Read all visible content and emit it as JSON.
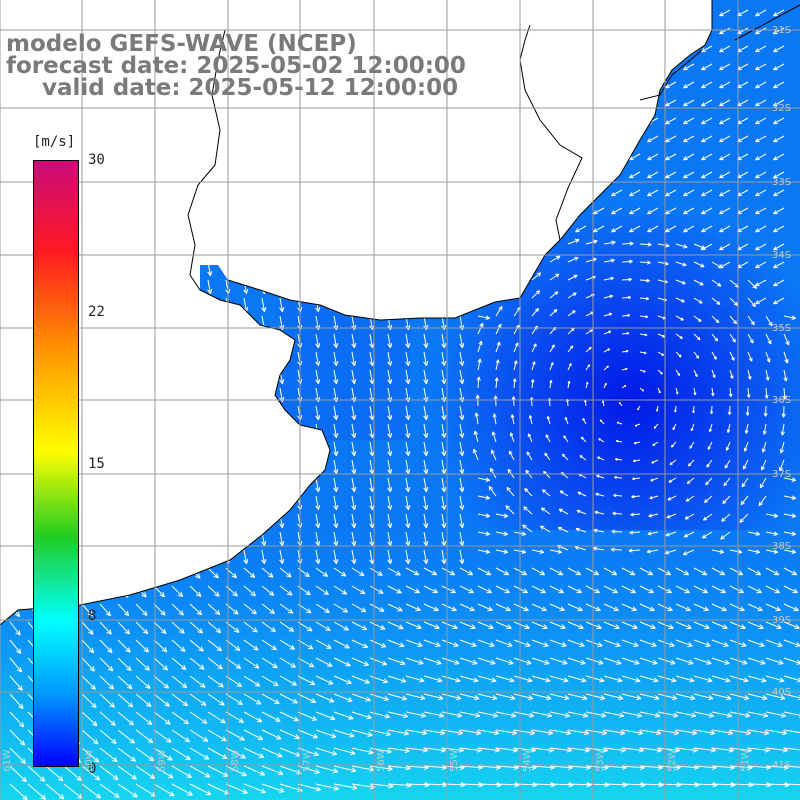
{
  "title": {
    "model": "modelo GEFS-WAVE (NCEP)",
    "forecast": "forecast date: 2025-05-02 12:00:00",
    "valid": "valid date: 2025-05-12 12:00:00"
  },
  "colorbar": {
    "unit": "[m/s]",
    "ticks": [
      "30",
      "22",
      "15",
      "8",
      "0"
    ],
    "range": [
      0,
      30
    ],
    "colors": [
      "#0000ff",
      "#0099ff",
      "#00ffff",
      "#22cc22",
      "#ffff00",
      "#ff8c00",
      "#ff1a22",
      "#cc0a7a"
    ]
  },
  "map": {
    "region": "South Atlantic – Rio de la Plata / Uruguay / southern Brazil",
    "land_color": "#ffffff",
    "grid_color": "#9a9a9a",
    "coast_color": "#000000",
    "arrow_color": "#ffffff",
    "lat_labels": [
      "31S",
      "32S",
      "33S",
      "34S",
      "35S",
      "36S",
      "37S",
      "38S",
      "39S",
      "40S",
      "41S"
    ],
    "lon_labels": [
      "61W",
      "60W",
      "59W",
      "58W",
      "57W",
      "56W",
      "55W",
      "54W",
      "53W",
      "52W",
      "51W"
    ]
  }
}
